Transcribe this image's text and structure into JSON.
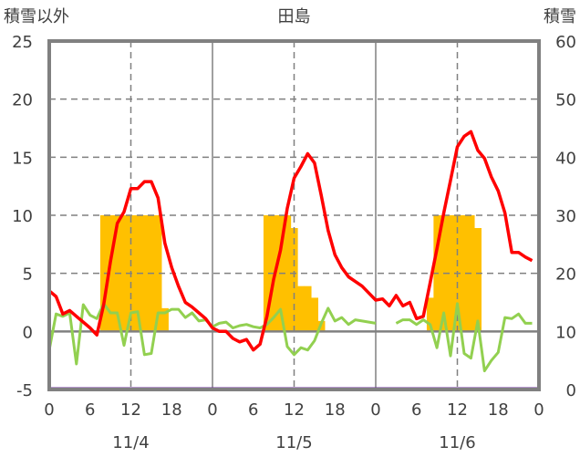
{
  "chart_data": {
    "type": "bar+line",
    "title": "田島",
    "left_axis_label": "積雪以外",
    "right_axis_label": "積雪",
    "left_ylim": [
      -5,
      25
    ],
    "left_ticks": [
      "25",
      "20",
      "15",
      "10",
      "5",
      "0",
      "-5"
    ],
    "left_tick_values": [
      25,
      20,
      15,
      10,
      5,
      0,
      -5
    ],
    "right_ylim": [
      0,
      60
    ],
    "right_ticks": [
      "60",
      "50",
      "40",
      "30",
      "20",
      "10",
      "0"
    ],
    "right_tick_values": [
      60,
      50,
      40,
      30,
      20,
      10,
      0
    ],
    "x_hour_ticks": [
      "0",
      "6",
      "12",
      "18",
      "0",
      "6",
      "12",
      "18",
      "0",
      "6",
      "12",
      "18",
      "0"
    ],
    "days": [
      "11/4",
      "11/5",
      "11/6"
    ],
    "grid": true,
    "colors": {
      "bars": "#FFC000",
      "temperature": "#FF0000",
      "green": "#92D050",
      "snow": "#7030A0",
      "axis": "#808080"
    },
    "bars": {
      "name": "bars (left axis)",
      "hours": [
        8,
        9,
        10,
        11,
        12,
        13,
        14,
        15,
        16,
        17,
        32,
        33,
        34,
        35,
        36,
        37,
        38,
        39,
        40,
        56,
        57,
        58,
        59,
        60,
        61,
        62,
        63
      ],
      "values": [
        10,
        10,
        10,
        10,
        10,
        10,
        10,
        10,
        10,
        2,
        10,
        10,
        10,
        10,
        8.9,
        3.9,
        3.9,
        2.9,
        0.9,
        2.9,
        10,
        10,
        10,
        10,
        10,
        10,
        8.9
      ]
    },
    "series": [
      {
        "name": "temperature",
        "axis": "left",
        "values": [
          3.5,
          3.0,
          1.5,
          1.8,
          1.3,
          0.8,
          0.3,
          -0.3,
          2.3,
          6.0,
          9.3,
          10.3,
          12.3,
          12.3,
          12.9,
          12.9,
          11.5,
          7.6,
          5.5,
          3.9,
          2.5,
          2.1,
          1.6,
          1.1,
          0.3,
          0.0,
          0.0,
          -0.6,
          -0.9,
          -0.7,
          -1.6,
          -1.1,
          1.3,
          4.5,
          7.0,
          10.6,
          13.2,
          14.2,
          15.3,
          14.5,
          11.7,
          8.7,
          6.6,
          5.5,
          4.7,
          4.3,
          3.9,
          3.3,
          2.7,
          2.8,
          2.2,
          3.1,
          2.2,
          2.5,
          1.1,
          1.3,
          4.2,
          7.1,
          10.2,
          13.0,
          15.9,
          16.8,
          17.2,
          15.6,
          14.9,
          13.3,
          12.1,
          10.2,
          6.8,
          6.8,
          6.4,
          6.1
        ]
      },
      {
        "name": "green-series",
        "axis": "left",
        "values": [
          -1.6,
          1.5,
          1.3,
          1.6,
          -2.8,
          2.3,
          1.4,
          1.1,
          2.4,
          1.6,
          1.6,
          -1.2,
          1.6,
          1.7,
          -2.0,
          -1.9,
          1.6,
          1.6,
          1.9,
          1.9,
          1.2,
          1.6,
          0.9,
          1.0,
          0.4,
          0.7,
          0.8,
          0.3,
          0.5,
          0.6,
          0.4,
          0.3,
          0.6,
          1.2,
          1.9,
          -1.3,
          -2.0,
          -1.4,
          -1.6,
          -0.8,
          0.7,
          2.0,
          0.9,
          1.2,
          0.6,
          1.0,
          0.9,
          0.8,
          0.7,
          null,
          null,
          0.7,
          1.0,
          1.0,
          0.6,
          1.0,
          0.6,
          -1.4,
          1.6,
          -2.1,
          2.4,
          -1.9,
          -2.3,
          0.9,
          -3.4,
          -2.5,
          -1.8,
          1.2,
          1.1,
          1.5,
          0.7,
          0.7
        ]
      },
      {
        "name": "snow-depth",
        "axis": "right",
        "values": [
          0,
          0
        ]
      }
    ]
  }
}
